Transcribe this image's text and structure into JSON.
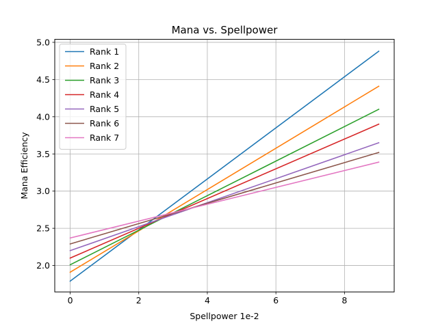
{
  "chart_data": {
    "type": "line",
    "title": "Mana vs. Spellpower",
    "xlabel": "Spellpower 1e-2",
    "ylabel": "Mana Efficiency",
    "xlim": [
      -0.45,
      9.45
    ],
    "ylim": [
      1.645,
      5.04
    ],
    "xticks": [
      0,
      2,
      4,
      6,
      8
    ],
    "yticks": [
      2.0,
      2.5,
      3.0,
      3.5,
      4.0,
      4.5,
      5.0
    ],
    "xtick_labels": [
      "0",
      "2",
      "4",
      "6",
      "8"
    ],
    "ytick_labels": [
      "2.0",
      "2.5",
      "3.0",
      "3.5",
      "4.0",
      "4.5",
      "5.0"
    ],
    "grid": true,
    "legend_position": "upper-left",
    "x": [
      0,
      9
    ],
    "series": [
      {
        "name": "Rank 1",
        "color": "#1f77b4",
        "values": [
          1.79,
          4.88
        ]
      },
      {
        "name": "Rank 2",
        "color": "#ff7f0e",
        "values": [
          1.91,
          4.41
        ]
      },
      {
        "name": "Rank 3",
        "color": "#2ca02c",
        "values": [
          2.01,
          4.1
        ]
      },
      {
        "name": "Rank 4",
        "color": "#d62728",
        "values": [
          2.1,
          3.9
        ]
      },
      {
        "name": "Rank 5",
        "color": "#9467bd",
        "values": [
          2.2,
          3.65
        ]
      },
      {
        "name": "Rank 6",
        "color": "#8c564b",
        "values": [
          2.29,
          3.52
        ]
      },
      {
        "name": "Rank 7",
        "color": "#e377c2",
        "values": [
          2.37,
          3.39
        ]
      }
    ]
  }
}
